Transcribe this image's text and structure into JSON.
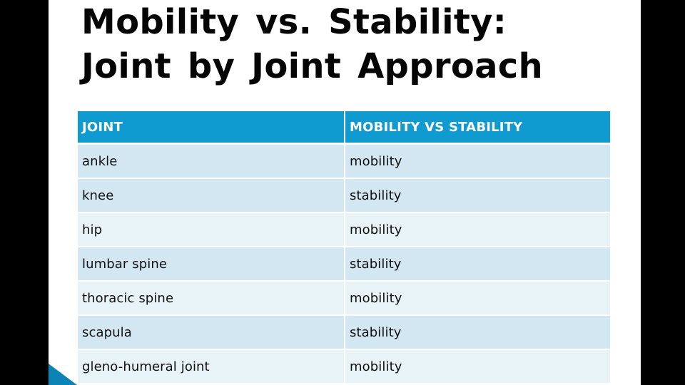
{
  "slide": {
    "title_line1": "Mobility vs. Stability:",
    "title_line2": "Joint by Joint Approach",
    "colors": {
      "header": "#0f9bd0",
      "row_dark": "#d2e7f1",
      "row_light": "#e8f3f8",
      "accent": "#0b83b4"
    }
  },
  "table": {
    "headers": [
      "JOINT",
      "MOBILITY VS STABILITY"
    ],
    "rows": [
      [
        "ankle",
        "mobility"
      ],
      [
        "knee",
        "stability"
      ],
      [
        "hip",
        "mobility"
      ],
      [
        "lumbar spine",
        "stability"
      ],
      [
        "thoracic spine",
        "mobility"
      ],
      [
        "scapula",
        "stability"
      ],
      [
        "gleno-humeral joint",
        "mobility"
      ]
    ]
  }
}
